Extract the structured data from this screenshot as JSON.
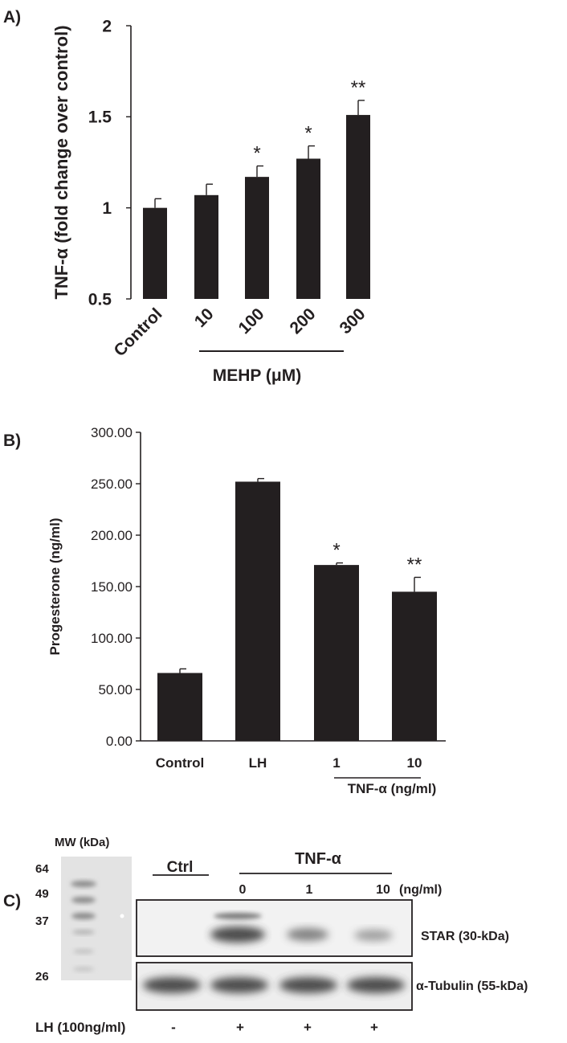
{
  "panels": {
    "a": {
      "label": "A)"
    },
    "b": {
      "label": "B)"
    },
    "c": {
      "label": "C)"
    }
  },
  "colors": {
    "bar": "#231f20",
    "axis": "#231f20",
    "blot_bg": "#ffffff"
  },
  "chart_data": [
    {
      "type": "bar",
      "panel": "A)",
      "ylabel": "TNF-α  (fold change over control)",
      "ylim": [
        0.5,
        2
      ],
      "yticks": [
        "0.5",
        "1",
        "1.5",
        "2"
      ],
      "ytick_values": [
        0.5,
        1,
        1.5,
        2
      ],
      "categories": [
        "Control",
        "10",
        "100",
        "200",
        "300"
      ],
      "values": [
        1.0,
        1.07,
        1.17,
        1.27,
        1.51
      ],
      "errors": [
        0.05,
        0.06,
        0.06,
        0.07,
        0.08
      ],
      "significance": [
        "",
        "",
        "*",
        "*",
        "**"
      ],
      "group_label": "MEHP (μM)",
      "grid": false
    },
    {
      "type": "bar",
      "panel": "B)",
      "ylabel": "Progesterone (ng/ml)",
      "ylim": [
        0,
        300
      ],
      "yticks": [
        "0.00",
        "50.00",
        "100.00",
        "150.00",
        "200.00",
        "250.00",
        "300.00"
      ],
      "ytick_values": [
        0,
        50,
        100,
        150,
        200,
        250,
        300
      ],
      "categories": [
        "Control",
        "LH",
        "1",
        "10"
      ],
      "values": [
        66,
        252,
        171,
        145
      ],
      "errors": [
        4,
        3,
        2,
        14
      ],
      "significance": [
        "",
        "",
        "*",
        "**"
      ],
      "group_label": "TNF-α (ng/ml)",
      "grid": false
    }
  ],
  "blot": {
    "mw_title": "MW (kDa)",
    "mw_markers": [
      "64",
      "49",
      "37",
      "26"
    ],
    "ctrl_label": "Ctrl",
    "tnf_label": "TNF-α",
    "doses": [
      "0",
      "1",
      "10"
    ],
    "dose_unit": "(ng/ml)",
    "star_label": "STAR (30-kDa)",
    "tubulin_label": "α-Tubulin (55-kDa)",
    "lh_label": "LH (100ng/ml)",
    "lh_marks": [
      "-",
      "+",
      "+",
      "+"
    ]
  }
}
